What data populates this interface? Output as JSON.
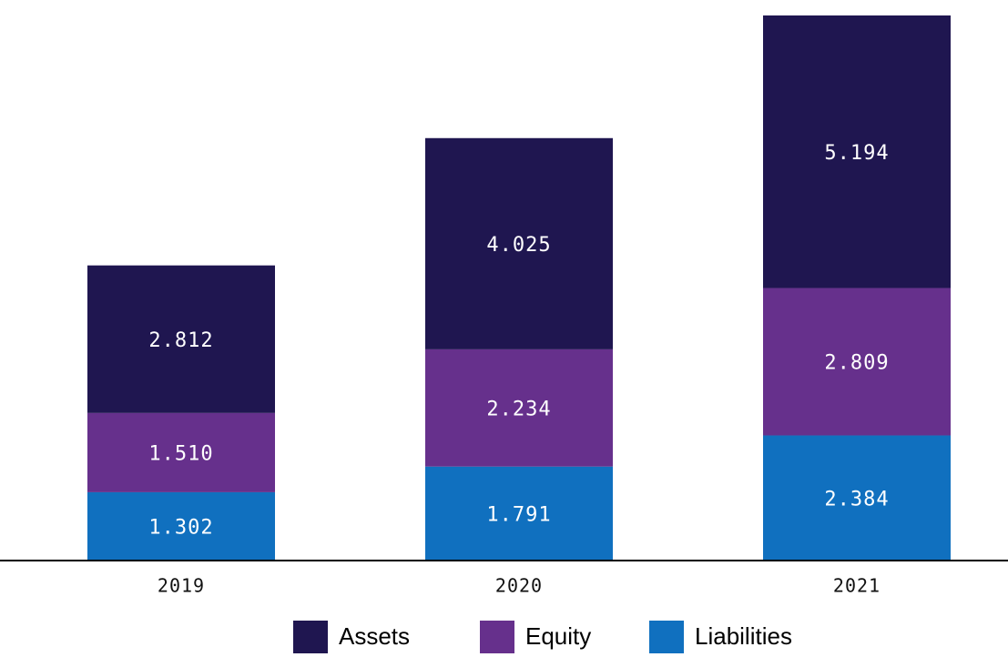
{
  "chart_data": {
    "type": "stacked-bar",
    "categories": [
      "2019",
      "2020",
      "2021"
    ],
    "series": [
      {
        "name": "Assets",
        "color": "#1f1650",
        "values": [
          2.812,
          4.025,
          5.194
        ],
        "value_labels": [
          "2.812",
          "4.025",
          "5.194"
        ]
      },
      {
        "name": "Equity",
        "color": "#66308c",
        "values": [
          1.51,
          2.234,
          2.809
        ],
        "value_labels": [
          "1.510",
          "2.234",
          "2.809"
        ]
      },
      {
        "name": "Liabilities",
        "color": "#1070bf",
        "values": [
          1.302,
          1.791,
          2.384
        ],
        "value_labels": [
          "1.302",
          "1.791",
          "2.384"
        ]
      }
    ],
    "legend": "bottom"
  }
}
